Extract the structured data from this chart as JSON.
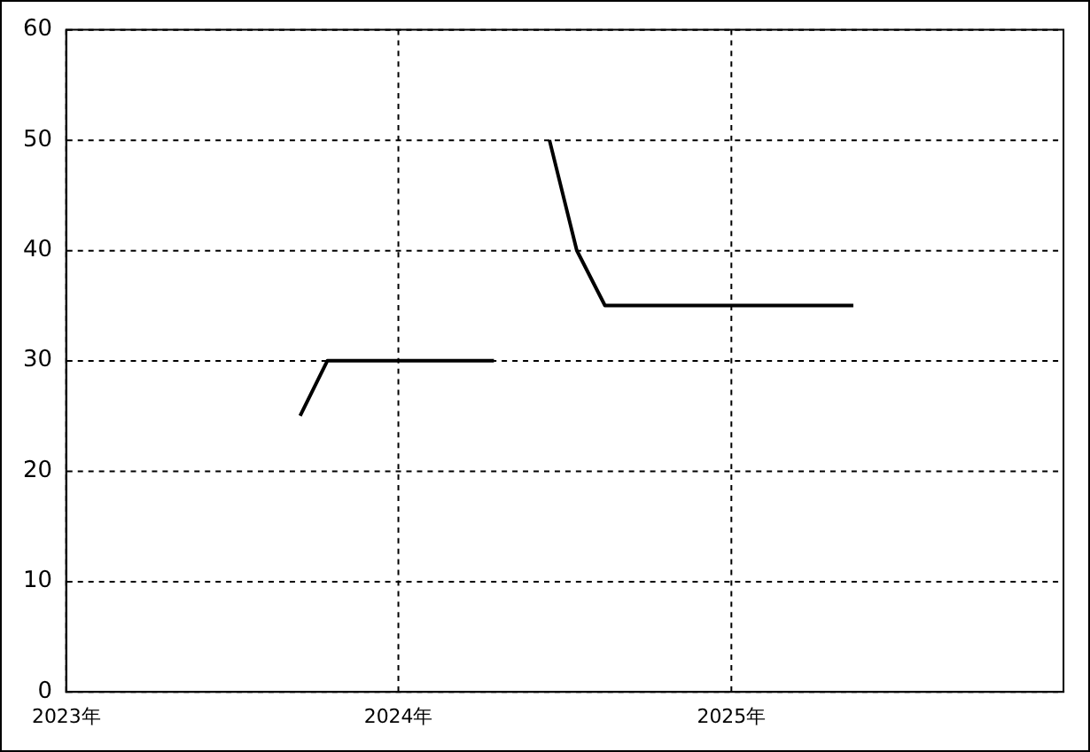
{
  "chart_data": {
    "type": "line",
    "series": [
      {
        "color": "#000000",
        "x": [
          "2023-09-15",
          "2023-10-15",
          "2024-04-15",
          "2024-05-15",
          "2024-06-15",
          "2024-07-15",
          "2024-08-15",
          "2025-05-15"
        ],
        "values": [
          25,
          30,
          30,
          null,
          50,
          40,
          35,
          35
        ]
      }
    ],
    "xlim": [
      "2023-01-01",
      "2026-01-01"
    ],
    "xticks": [
      {
        "value": "2023-01-01",
        "label": "2023年"
      },
      {
        "value": "2024-01-01",
        "label": "2024年"
      },
      {
        "value": "2025-01-01",
        "label": "2025年"
      }
    ],
    "ylim": [
      0,
      60
    ],
    "yticks": [
      0,
      10,
      20,
      30,
      40,
      50,
      60
    ],
    "grid": true,
    "legend": false,
    "marker": "none",
    "line_style": "solid"
  }
}
